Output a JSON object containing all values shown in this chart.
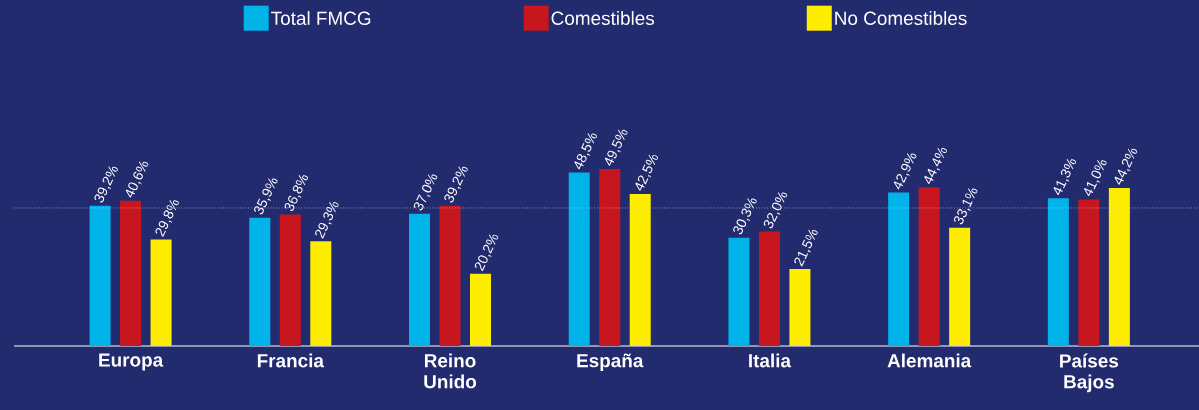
{
  "chart_data": {
    "type": "bar",
    "categories": [
      "Europa",
      "Francia",
      "Reino Unido",
      "España",
      "Italia",
      "Alemania",
      "Países Bajos"
    ],
    "series": [
      {
        "name": "Total FMCG",
        "color": "#00b4e9",
        "values": [
          39.2,
          35.9,
          37.0,
          48.5,
          30.3,
          42.9,
          41.3
        ],
        "value_labels": [
          "39,2%",
          "35,9%",
          "37,0%",
          "48,5%",
          "30,3%",
          "42,9%",
          "41,3%"
        ]
      },
      {
        "name": "Comestibles",
        "color": "#c8161e",
        "values": [
          40.6,
          36.8,
          39.2,
          49.5,
          32.0,
          44.4,
          41.0
        ],
        "value_labels": [
          "40,6%",
          "36,8%",
          "39,2%",
          "49,5%",
          "32,0%",
          "44,4%",
          "41,0%"
        ]
      },
      {
        "name": "No Comestibles",
        "color": "#ffed00",
        "values": [
          29.8,
          29.3,
          20.2,
          42.5,
          21.5,
          33.1,
          44.2
        ],
        "value_labels": [
          "29,8%",
          "29,3%",
          "20,2%",
          "42,5%",
          "21,5%",
          "33,1%",
          "44,2%"
        ]
      }
    ],
    "ref_lines": [
      {
        "axis": "y",
        "value": 38.6,
        "color": "#c8cce0",
        "line_style": "dotted"
      }
    ],
    "legend": "top"
  }
}
